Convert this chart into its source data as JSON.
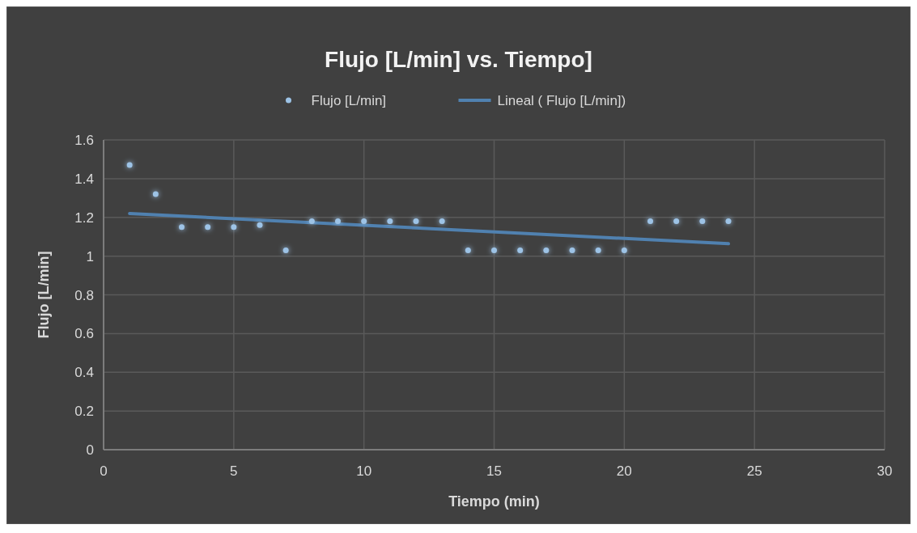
{
  "chart_data": {
    "type": "scatter",
    "title": "Flujo [L/min] vs. Tiempo]",
    "xlabel": "Tiempo (min)",
    "ylabel": "Flujo [L/min]",
    "series": [
      {
        "name": "Flujo [L/min]",
        "color": "#9dc3e6",
        "marker": "circle",
        "x": [
          1,
          2,
          3,
          4,
          5,
          6,
          7,
          8,
          9,
          10,
          11,
          12,
          13,
          14,
          15,
          16,
          17,
          18,
          19,
          20,
          21,
          22,
          23,
          24
        ],
        "values": [
          1.47,
          1.32,
          1.15,
          1.15,
          1.15,
          1.16,
          1.03,
          1.18,
          1.18,
          1.18,
          1.18,
          1.18,
          1.18,
          1.03,
          1.03,
          1.03,
          1.03,
          1.03,
          1.03,
          1.03,
          1.18,
          1.18,
          1.18,
          1.18
        ]
      },
      {
        "name": "Lineal ( Flujo [L/min])",
        "type": "line",
        "color": "#5081b0",
        "line_style": "solid",
        "x": [
          1,
          24
        ],
        "values": [
          1.22,
          1.064
        ]
      }
    ],
    "xlim": [
      0,
      30
    ],
    "xticks": [
      0,
      5,
      10,
      15,
      20,
      25,
      30
    ],
    "ylim": [
      0,
      1.6
    ],
    "yticks": [
      0,
      0.2,
      0.4,
      0.6,
      0.8,
      1,
      1.2,
      1.4,
      1.6
    ],
    "grid": true,
    "legend": "top"
  }
}
